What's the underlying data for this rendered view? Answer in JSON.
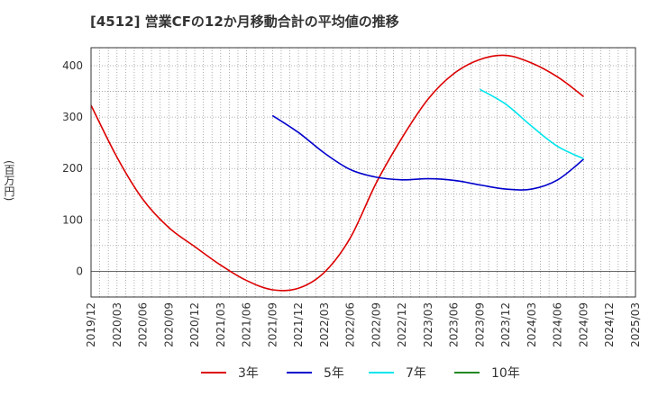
{
  "chart_data": {
    "type": "line",
    "title": "[4512]  営業CFの12か月移動合計の平均値の推移",
    "y_unit_label": "(百万円)",
    "xlabel": "",
    "ylabel": "(百万円)",
    "ylim": [
      -50,
      435
    ],
    "y_ticks": [
      0,
      100,
      200,
      300,
      400
    ],
    "x_ticks": [
      "2019/12",
      "2020/03",
      "2020/06",
      "2020/09",
      "2020/12",
      "2021/03",
      "2021/06",
      "2021/09",
      "2021/12",
      "2022/03",
      "2022/06",
      "2022/09",
      "2022/12",
      "2023/03",
      "2023/06",
      "2023/09",
      "2023/12",
      "2024/03",
      "2024/06",
      "2024/09",
      "2024/12",
      "2025/03"
    ],
    "grid": true,
    "legend_position": "bottom",
    "series": [
      {
        "name": "3年",
        "color": "#dd0000",
        "points": [
          [
            "2019/12",
            323
          ],
          [
            "2020/03",
            222
          ],
          [
            "2020/06",
            140
          ],
          [
            "2020/09",
            85
          ],
          [
            "2020/12",
            48
          ],
          [
            "2021/03",
            12
          ],
          [
            "2021/06",
            -18
          ],
          [
            "2021/09",
            -36
          ],
          [
            "2021/12",
            -33
          ],
          [
            "2022/03",
            -2
          ],
          [
            "2022/06",
            65
          ],
          [
            "2022/09",
            172
          ],
          [
            "2022/12",
            260
          ],
          [
            "2023/03",
            335
          ],
          [
            "2023/06",
            385
          ],
          [
            "2023/09",
            412
          ],
          [
            "2023/12",
            420
          ],
          [
            "2024/03",
            405
          ],
          [
            "2024/06",
            378
          ],
          [
            "2024/09",
            340
          ]
        ]
      },
      {
        "name": "5年",
        "color": "#0000cc",
        "points": [
          [
            "2021/09",
            303
          ],
          [
            "2021/12",
            270
          ],
          [
            "2022/03",
            230
          ],
          [
            "2022/06",
            198
          ],
          [
            "2022/09",
            183
          ],
          [
            "2022/12",
            178
          ],
          [
            "2023/03",
            180
          ],
          [
            "2023/06",
            177
          ],
          [
            "2023/09",
            168
          ],
          [
            "2023/12",
            160
          ],
          [
            "2024/03",
            160
          ],
          [
            "2024/06",
            178
          ],
          [
            "2024/09",
            218
          ]
        ]
      },
      {
        "name": "7年",
        "color": "#00e5ee",
        "points": [
          [
            "2023/09",
            354
          ],
          [
            "2023/12",
            325
          ],
          [
            "2024/03",
            282
          ],
          [
            "2024/06",
            243
          ],
          [
            "2024/09",
            219
          ]
        ]
      },
      {
        "name": "10年",
        "color": "#228822",
        "points": []
      }
    ]
  }
}
